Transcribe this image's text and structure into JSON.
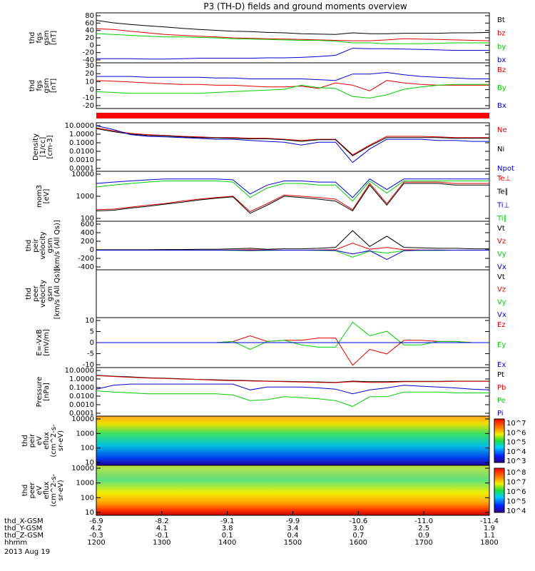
{
  "title": "P3 (TH-D) fields and ground moments overview",
  "colors": {
    "black": "#000000",
    "red": "#e00000",
    "green": "#00d000",
    "blue": "#0000d0"
  },
  "chart_data": [
    {
      "type": "line",
      "ylabel": [
        "thd",
        "fgs",
        "gsm",
        "[nT]"
      ],
      "yticks": [
        "80",
        "60",
        "40",
        "20",
        "0",
        "-20",
        "-40"
      ],
      "ylim": [
        -40,
        80
      ],
      "legend": [
        {
          "name": "Bt",
          "color": "black"
        },
        {
          "name": "bz",
          "color": "red"
        },
        {
          "name": "by",
          "color": "green"
        },
        {
          "name": "bx",
          "color": "blue"
        }
      ],
      "series": [
        {
          "name": "Bt",
          "color": "black",
          "values": [
            62,
            56,
            52,
            49,
            46,
            43,
            40,
            38,
            36,
            35,
            33,
            32,
            30,
            29,
            28,
            32,
            30,
            30,
            31,
            31,
            31,
            32,
            32,
            33
          ]
        },
        {
          "name": "bz",
          "color": "red",
          "values": [
            42,
            40,
            36,
            32,
            28,
            26,
            24,
            22,
            20,
            19,
            18,
            17,
            16,
            15,
            14,
            13,
            13,
            15,
            18,
            17,
            16,
            15,
            14,
            13
          ]
        },
        {
          "name": "by",
          "color": "green",
          "values": [
            30,
            28,
            26,
            24,
            22,
            22,
            21,
            20,
            18,
            17,
            16,
            15,
            14,
            14,
            12,
            8,
            8,
            6,
            6,
            6,
            7,
            8,
            8,
            8
          ]
        },
        {
          "name": "bx",
          "color": "blue",
          "values": [
            -30,
            -30,
            -30,
            -31,
            -31,
            -30,
            -29,
            -29,
            -29,
            -29,
            -28,
            -28,
            -27,
            -25,
            -22,
            -5,
            -6,
            -6,
            -7,
            -8,
            -9,
            -10,
            -10,
            -10
          ]
        }
      ]
    },
    {
      "type": "line",
      "ylabel": [
        "thd",
        "fgs",
        "gsm",
        "[nT]"
      ],
      "yticks": [
        "30",
        "20",
        "10",
        "0",
        "-10",
        "-20"
      ],
      "ylim": [
        -27,
        30
      ],
      "legend": [
        {
          "name": "Bz",
          "color": "red"
        },
        {
          "name": "By",
          "color": "green"
        },
        {
          "name": "Bx",
          "color": "blue"
        }
      ],
      "series": [
        {
          "name": "Bz",
          "color": "red",
          "values": [
            8,
            7,
            6,
            5,
            4,
            3,
            3,
            2,
            2,
            1,
            0,
            0,
            1,
            -2,
            5,
            2,
            -5,
            8,
            5,
            3,
            2,
            2,
            2,
            2
          ]
        },
        {
          "name": "By",
          "color": "green",
          "values": [
            -6,
            -7,
            -8,
            -8,
            -8,
            -8,
            -8,
            -7,
            -6,
            -5,
            -4,
            -3,
            2,
            -1,
            -2,
            -12,
            -14,
            -10,
            -3,
            0,
            2,
            3,
            3,
            3
          ]
        },
        {
          "name": "Bx",
          "color": "blue",
          "values": [
            13,
            13,
            13,
            12,
            12,
            12,
            12,
            11,
            11,
            10,
            10,
            10,
            10,
            9,
            8,
            16,
            16,
            18,
            15,
            13,
            12,
            11,
            10,
            10
          ]
        }
      ]
    },
    {
      "type": "line",
      "ylabel": [
        "Density",
        "[1/cc]",
        "[cm-3]"
      ],
      "yticks": [
        "10.0000",
        "1.0000",
        "0.1000",
        "0.0100",
        "0.0010",
        "0.0001"
      ],
      "log": true,
      "ylim": [
        0.0001,
        10
      ],
      "legend": [
        {
          "name": "Ne",
          "color": "red"
        },
        {
          "name": "Ni",
          "color": "black"
        },
        {
          "name": "Npot",
          "color": "blue"
        }
      ],
      "series": [
        {
          "name": "Ne",
          "color": "red",
          "values": [
            3,
            1.5,
            0.8,
            0.6,
            0.5,
            0.4,
            0.35,
            0.3,
            0.3,
            0.25,
            0.25,
            0.2,
            0.15,
            0.2,
            0.2,
            0.005,
            0.05,
            0.4,
            0.4,
            0.4,
            0.35,
            0.3,
            0.3,
            0.3
          ]
        },
        {
          "name": "Ni",
          "color": "black",
          "values": [
            2.5,
            1.2,
            0.7,
            0.5,
            0.45,
            0.35,
            0.3,
            0.28,
            0.25,
            0.22,
            0.22,
            0.18,
            0.12,
            0.18,
            0.18,
            0.004,
            0.04,
            0.3,
            0.3,
            0.3,
            0.3,
            0.25,
            0.25,
            0.25
          ]
        },
        {
          "name": "Npot",
          "color": "blue",
          "values": [
            5,
            2,
            0.6,
            0.4,
            0.35,
            0.3,
            0.25,
            0.2,
            0.2,
            0.15,
            0.12,
            0.1,
            0.05,
            0.1,
            0.1,
            0.0008,
            0.02,
            0.2,
            0.2,
            0.2,
            0.15,
            0.15,
            0.12,
            0.12
          ]
        }
      ]
    },
    {
      "type": "line",
      "ylabel": [
        "mom3",
        "[eV]"
      ],
      "yticks": [
        "10000",
        "1000",
        "100"
      ],
      "log": true,
      "ylim": [
        40,
        12000
      ],
      "legend": [
        {
          "name": "Te⊥",
          "color": "red"
        },
        {
          "name": "Te∥",
          "color": "black"
        },
        {
          "name": "Ti⊥",
          "color": "blue"
        },
        {
          "name": "Ti∥",
          "color": "green"
        }
      ],
      "series": [
        {
          "name": "Te⊥",
          "color": "red",
          "values": [
            150,
            160,
            200,
            250,
            300,
            400,
            500,
            600,
            700,
            120,
            300,
            800,
            700,
            600,
            500,
            150,
            3000,
            300,
            3500,
            3500,
            3500,
            3000,
            3000,
            3000
          ]
        },
        {
          "name": "Te∥",
          "color": "black",
          "values": [
            130,
            140,
            180,
            220,
            280,
            350,
            450,
            550,
            650,
            100,
            250,
            700,
            600,
            500,
            400,
            130,
            2500,
            250,
            3000,
            3000,
            3000,
            2500,
            2500,
            2500
          ]
        },
        {
          "name": "Ti⊥",
          "color": "blue",
          "values": [
            3000,
            3500,
            4000,
            4500,
            5000,
            5000,
            5000,
            5000,
            4500,
            900,
            2500,
            4000,
            4000,
            3500,
            3500,
            600,
            5000,
            1500,
            5000,
            5000,
            5000,
            5000,
            5000,
            5000
          ]
        },
        {
          "name": "Ti∥",
          "color": "green",
          "values": [
            2000,
            2500,
            3000,
            3500,
            4000,
            4000,
            4000,
            4000,
            3500,
            600,
            1800,
            3000,
            3000,
            2500,
            2500,
            400,
            4000,
            1000,
            4000,
            4000,
            4000,
            4000,
            4000,
            4000
          ]
        }
      ]
    },
    {
      "type": "line",
      "ylabel": [
        "thd",
        "peir",
        "velocity",
        "gsm",
        "[km/s (All Qs)]"
      ],
      "yticks": [
        "600",
        "400",
        "200",
        "0",
        "-200",
        "-400"
      ],
      "ylim": [
        -420,
        620
      ],
      "legend": [
        {
          "name": "Vt",
          "color": "black"
        },
        {
          "name": "Vz",
          "color": "red"
        },
        {
          "name": "Vy",
          "color": "green"
        },
        {
          "name": "Vx",
          "color": "blue"
        }
      ],
      "series": [
        {
          "name": "Vt",
          "color": "black",
          "values": [
            10,
            10,
            10,
            10,
            15,
            15,
            20,
            20,
            30,
            40,
            20,
            30,
            30,
            40,
            60,
            420,
            80,
            300,
            60,
            50,
            40,
            40,
            30,
            30
          ]
        },
        {
          "name": "Vz",
          "color": "red",
          "values": [
            0,
            0,
            0,
            0,
            0,
            0,
            0,
            0,
            5,
            10,
            5,
            0,
            0,
            5,
            10,
            150,
            20,
            60,
            10,
            5,
            5,
            0,
            0,
            0
          ]
        },
        {
          "name": "Vy",
          "color": "green",
          "values": [
            0,
            0,
            0,
            0,
            0,
            0,
            0,
            0,
            -5,
            -10,
            -5,
            0,
            0,
            -5,
            -10,
            -150,
            -20,
            -60,
            -10,
            -5,
            -5,
            0,
            0,
            0
          ]
        },
        {
          "name": "Vx",
          "color": "blue",
          "values": [
            0,
            0,
            0,
            0,
            0,
            0,
            0,
            0,
            0,
            -5,
            0,
            0,
            0,
            0,
            -5,
            -80,
            -10,
            -200,
            -10,
            0,
            0,
            0,
            0,
            0
          ]
        }
      ]
    },
    {
      "type": "line",
      "ylabel": [
        "thd",
        "peer",
        "velocity",
        "gsm",
        "[km/s (All Qs)]"
      ],
      "yticks": [],
      "legend": [
        {
          "name": "Vt",
          "color": "black"
        },
        {
          "name": "Vz",
          "color": "red"
        },
        {
          "name": "Vy",
          "color": "green"
        },
        {
          "name": "Vx",
          "color": "blue"
        }
      ],
      "series": []
    },
    {
      "type": "line",
      "ylabel": [
        "E=-VxB",
        "[mV/m]"
      ],
      "yticks": [
        "10",
        "5",
        "0",
        "-5",
        "-10"
      ],
      "ylim": [
        -11,
        11
      ],
      "legend": [
        {
          "name": "Ez",
          "color": "red"
        },
        {
          "name": "Ey",
          "color": "green"
        },
        {
          "name": "Ex",
          "color": "blue"
        }
      ],
      "series": [
        {
          "name": "Ez",
          "color": "red",
          "values": [
            0,
            0,
            0,
            0,
            0,
            0,
            0,
            0,
            0.5,
            3,
            0.5,
            1,
            1,
            2,
            2,
            -10,
            -3,
            -5,
            1,
            1,
            0.5,
            0.5,
            0,
            0
          ]
        },
        {
          "name": "Ey",
          "color": "green",
          "values": [
            0,
            0,
            0,
            0,
            0,
            0,
            0,
            0,
            0.5,
            -3,
            0.5,
            1,
            -1,
            -2,
            -2,
            9,
            3,
            5,
            -1,
            -1,
            0.5,
            0.5,
            0,
            0
          ]
        },
        {
          "name": "Ex",
          "color": "blue",
          "values": [
            0,
            0,
            0,
            0,
            0,
            0,
            0,
            0,
            0,
            0,
            0,
            0,
            0,
            0,
            0,
            0,
            0,
            0,
            0,
            0,
            0,
            0,
            0,
            0
          ]
        }
      ]
    },
    {
      "type": "line",
      "ylabel": [
        "Pressure",
        "[nPa]"
      ],
      "yticks": [
        "10.0000",
        "1.0000",
        "0.1000",
        "0.0100",
        "0.0010",
        "0.0001"
      ],
      "log": true,
      "ylim": [
        0.0001,
        10
      ],
      "legend": [
        {
          "name": "Pt",
          "color": "black"
        },
        {
          "name": "Pb",
          "color": "red"
        },
        {
          "name": "Pe",
          "color": "green"
        },
        {
          "name": "Pi",
          "color": "blue"
        }
      ],
      "series": [
        {
          "name": "Pt",
          "color": "black",
          "values": [
            1.6,
            1.3,
            1.1,
            0.9,
            0.8,
            0.7,
            0.6,
            0.55,
            0.5,
            0.45,
            0.4,
            0.38,
            0.35,
            0.33,
            0.3,
            0.4,
            0.35,
            0.35,
            0.38,
            0.38,
            0.38,
            0.4,
            0.4,
            0.4
          ]
        },
        {
          "name": "Pb",
          "color": "red",
          "values": [
            1.5,
            1.2,
            1.0,
            0.85,
            0.75,
            0.65,
            0.58,
            0.5,
            0.45,
            0.42,
            0.38,
            0.35,
            0.32,
            0.3,
            0.28,
            0.35,
            0.3,
            0.3,
            0.35,
            0.35,
            0.35,
            0.38,
            0.38,
            0.38
          ]
        },
        {
          "name": "Pe",
          "color": "green",
          "values": [
            0.04,
            0.03,
            0.025,
            0.02,
            0.02,
            0.02,
            0.02,
            0.02,
            0.015,
            0.004,
            0.005,
            0.01,
            0.008,
            0.006,
            0.004,
            0.001,
            0.01,
            0.01,
            0.03,
            0.03,
            0.03,
            0.025,
            0.025,
            0.025
          ]
        },
        {
          "name": "Pi",
          "color": "blue",
          "values": [
            0.06,
            0.15,
            0.2,
            0.2,
            0.2,
            0.2,
            0.2,
            0.2,
            0.2,
            0.05,
            0.1,
            0.1,
            0.1,
            0.08,
            0.06,
            0.02,
            0.05,
            0.08,
            0.15,
            0.12,
            0.1,
            0.08,
            0.06,
            0.05
          ]
        }
      ]
    },
    {
      "type": "heatmap",
      "ylabel": [
        "thd",
        "peir",
        "eV",
        "eflux",
        "(cm^2-s-",
        "sr-eV)"
      ],
      "yticks": [
        "10000",
        "1000",
        "100",
        "10"
      ],
      "colorbar": [
        "10^7",
        "10^6",
        "10^5",
        "10^4",
        "10^3"
      ]
    },
    {
      "type": "heatmap",
      "ylabel": [
        "thd",
        "peer",
        "eV",
        "eflux",
        "(cm^2-s-",
        "sr-eV)"
      ],
      "yticks": [
        "10000",
        "1000",
        "100",
        "10"
      ],
      "colorbar": [
        "10^8",
        "10^7",
        "10^6",
        "10^5",
        "10^4"
      ]
    }
  ],
  "xaxis": {
    "rows": [
      {
        "label": "thd_X-GSM",
        "values": [
          "-6.9",
          "-8.2",
          "-9.1",
          "-9.9",
          "-10.6",
          "-11.0",
          "-11.4"
        ]
      },
      {
        "label": "thd_Y-GSM",
        "values": [
          "4.2",
          "4.1",
          "3.8",
          "3.4",
          "3.0",
          "2.5",
          "1.9"
        ]
      },
      {
        "label": "thd_Z-GSM",
        "values": [
          "-0.3",
          "-0.1",
          "0.1",
          "0.4",
          "0.7",
          "0.9",
          "1.1"
        ]
      },
      {
        "label": "hhmm",
        "values": [
          "1200",
          "1300",
          "1400",
          "1500",
          "1600",
          "1700",
          "1800"
        ]
      }
    ],
    "date": "2013 Aug 19"
  }
}
